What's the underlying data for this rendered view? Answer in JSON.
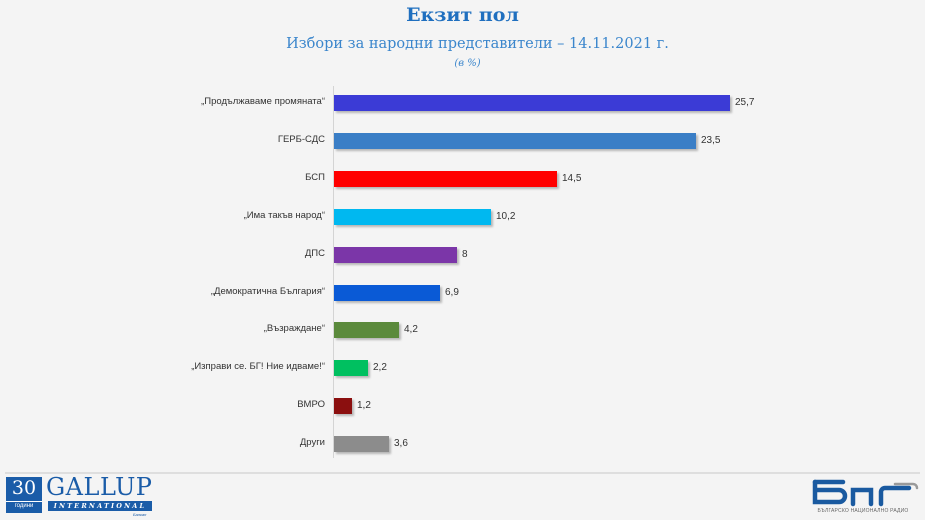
{
  "header": {
    "title": "Екзит пол",
    "subtitle": "Избори за народни представители – 14.11.2021 г.",
    "unit": "(в %)"
  },
  "chart_data": {
    "type": "bar",
    "orientation": "horizontal",
    "title": "Екзит пол",
    "subtitle": "Избори за народни представители – 14.11.2021 г.",
    "unit": "(в %)",
    "xlabel": "",
    "ylabel": "",
    "grid": false,
    "legend": null,
    "categories": [
      "„Продължаваме промяната“",
      "ГЕРБ-СДС",
      "БСП",
      "„Има такъв народ“",
      "ДПС",
      "„Демократична България“",
      "„Възраждане“",
      "„Изправи се. БГ! Ние идваме!“",
      "ВМРО",
      "Други"
    ],
    "values": [
      25.7,
      23.5,
      14.5,
      10.2,
      8,
      6.9,
      4.2,
      2.2,
      1.2,
      3.6
    ],
    "value_labels": [
      "25,7",
      "23,5",
      "14,5",
      "10,2",
      "8",
      "6,9",
      "4,2",
      "2,2",
      "1,2",
      "3,6"
    ],
    "colors": [
      "#3b3bd6",
      "#3a7ec6",
      "#ff0000",
      "#00b8f0",
      "#7b36a8",
      "#0a5ad6",
      "#5b8a3c",
      "#00c060",
      "#8b0f0f",
      "#8c8c8c"
    ]
  },
  "footer": {
    "gallup": {
      "years_number": "30",
      "years_label": "години",
      "name": "GALLUP",
      "sub": "INTERNATIONAL",
      "city": "Балкан"
    },
    "bnr": {
      "logo_text": "бнр",
      "tagline": "БЪЛГАРСКО НАЦИОНАЛНО РАДИО"
    }
  }
}
